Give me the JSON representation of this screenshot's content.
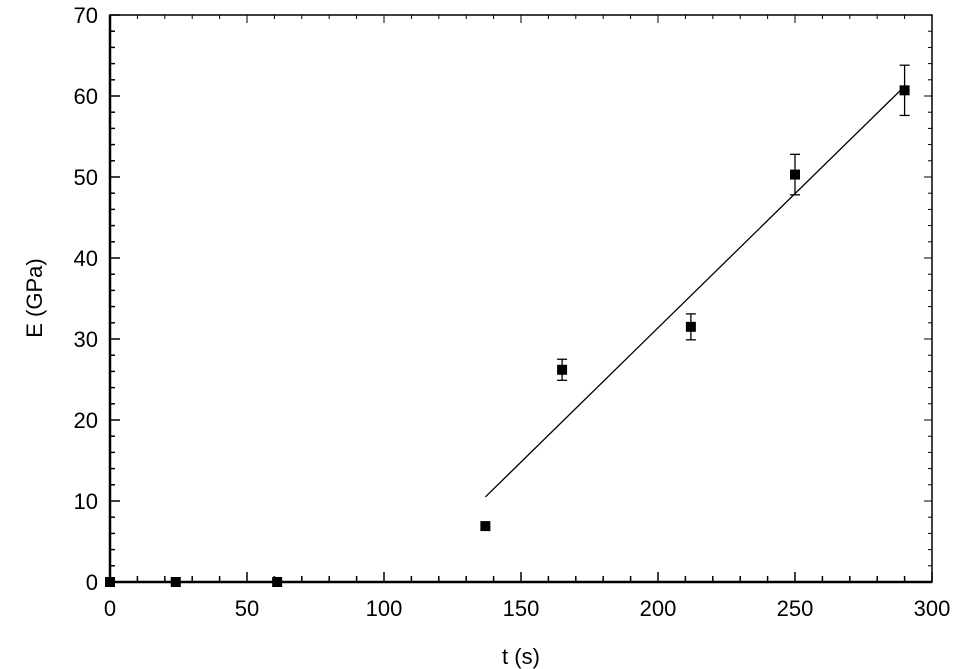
{
  "chart_data": {
    "type": "scatter",
    "title": "",
    "xlabel": "t (s)",
    "ylabel": "E (GPa)",
    "xlim": [
      0,
      300
    ],
    "ylim": [
      0,
      70
    ],
    "x_ticks": [
      "0",
      "50",
      "100",
      "150",
      "200",
      "250",
      "300"
    ],
    "y_ticks": [
      "0",
      "10",
      "20",
      "30",
      "40",
      "50",
      "60",
      "70"
    ],
    "grid": false,
    "legend": "none",
    "series": [
      {
        "marker": "filled-square",
        "color": "#000000",
        "points": [
          {
            "x": 0,
            "y": 0,
            "err": 0
          },
          {
            "x": 24,
            "y": 0,
            "err": 0
          },
          {
            "x": 61,
            "y": 0,
            "err": 0
          },
          {
            "x": 137,
            "y": 6.9,
            "err": 0
          },
          {
            "x": 165,
            "y": 26.2,
            "err": 1.3
          },
          {
            "x": 212,
            "y": 31.5,
            "err": 1.6
          },
          {
            "x": 250,
            "y": 50.3,
            "err": 2.5
          },
          {
            "x": 290,
            "y": 60.7,
            "err": 3.1
          }
        ]
      }
    ],
    "lines": [
      {
        "type": "linear-fit",
        "x": [
          137,
          290
        ],
        "y": [
          10.5,
          61.2
        ]
      },
      {
        "type": "baseline",
        "x": [
          0,
          70
        ],
        "y": [
          0,
          0
        ]
      }
    ]
  }
}
